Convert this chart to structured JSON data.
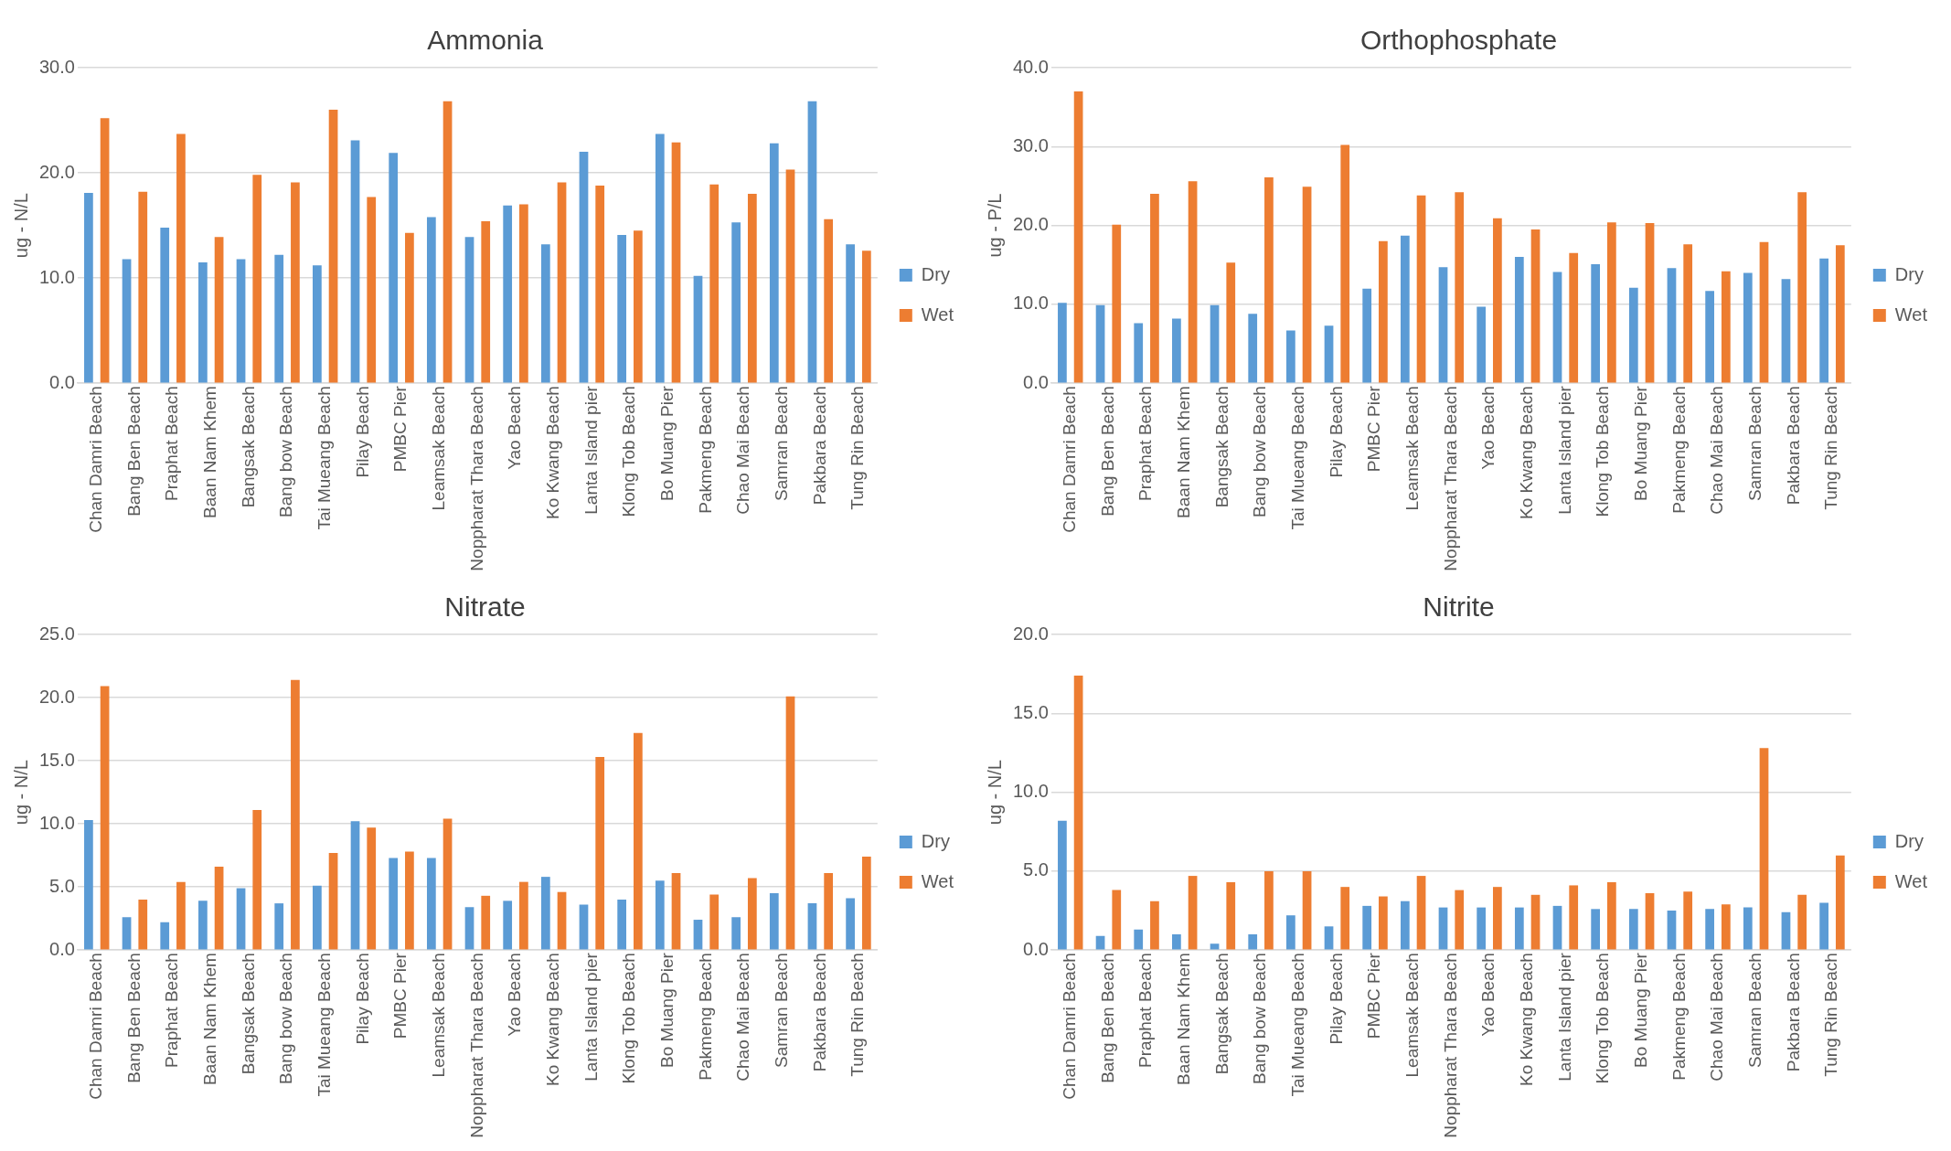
{
  "chart_data": [
    {
      "type": "bar",
      "title": "Ammonia",
      "ylabel": "ug - N/L",
      "categories": [
        "Chan Damri Beach",
        "Bang Ben Beach",
        "Praphat Beach",
        "Baan Nam Khem",
        "Bangsak Beach",
        "Bang bow Beach",
        "Tai Mueang Beach",
        "Pilay Beach",
        "PMBC Pier",
        "Leamsak Beach",
        "Noppharat Thara Beach",
        "Yao Beach",
        "Ko Kwang Beach",
        "Lanta Island pier",
        "Klong Tob Beach",
        "Bo Muang Pier",
        "Pakmeng Beach",
        "Chao Mai Beach",
        "Samran Beach",
        "Pakbara Beach",
        "Tung Rin Beach"
      ],
      "series": [
        {
          "name": "Dry",
          "color": "#5b9bd5",
          "values": [
            18.1,
            11.8,
            14.8,
            11.5,
            11.8,
            12.2,
            11.2,
            23.1,
            21.9,
            15.8,
            13.9,
            16.9,
            13.2,
            22.0,
            14.1,
            23.7,
            10.2,
            15.3,
            22.8,
            26.8,
            13.2
          ]
        },
        {
          "name": "Wet",
          "color": "#ed7d31",
          "values": [
            25.2,
            18.2,
            23.7,
            13.9,
            19.8,
            19.1,
            26.0,
            17.7,
            14.3,
            26.8,
            15.4,
            17.0,
            19.1,
            18.8,
            14.5,
            22.9,
            18.9,
            18.0,
            20.3,
            15.6,
            12.6
          ]
        }
      ],
      "ylim": [
        0,
        30
      ],
      "yticks": [
        {
          "value": 0,
          "label": "0.0"
        },
        {
          "value": 10,
          "label": "10.0"
        },
        {
          "value": 20,
          "label": "20.0"
        },
        {
          "value": 30,
          "label": "30.0"
        }
      ],
      "grid": "y",
      "legend": "right"
    },
    {
      "type": "bar",
      "title": "Orthophosphate",
      "ylabel": "ug - P/L",
      "categories": [
        "Chan Damri Beach",
        "Bang Ben Beach",
        "Praphat Beach",
        "Baan Nam Khem",
        "Bangsak Beach",
        "Bang bow Beach",
        "Tai Mueang Beach",
        "Pilay Beach",
        "PMBC Pier",
        "Leamsak Beach",
        "Noppharat Thara Beach",
        "Yao Beach",
        "Ko Kwang Beach",
        "Lanta Island pier",
        "Klong Tob Beach",
        "Bo Muang Pier",
        "Pakmeng Beach",
        "Chao Mai Beach",
        "Samran Beach",
        "Pakbara Beach",
        "Tung Rin Beach"
      ],
      "series": [
        {
          "name": "Dry",
          "color": "#5b9bd5",
          "values": [
            10.2,
            9.9,
            7.6,
            8.2,
            9.9,
            8.8,
            6.7,
            7.3,
            12.0,
            18.7,
            14.7,
            9.7,
            16.0,
            14.1,
            15.1,
            12.1,
            14.6,
            11.7,
            14.0,
            13.2,
            15.8
          ]
        },
        {
          "name": "Wet",
          "color": "#ed7d31",
          "values": [
            37.0,
            20.1,
            24.0,
            25.6,
            15.3,
            26.1,
            24.9,
            30.2,
            18.0,
            23.8,
            24.2,
            20.9,
            19.5,
            16.5,
            20.4,
            20.3,
            17.6,
            14.2,
            17.9,
            24.2,
            17.5
          ]
        }
      ],
      "ylim": [
        0,
        40
      ],
      "yticks": [
        {
          "value": 0,
          "label": "0.0"
        },
        {
          "value": 10,
          "label": "10.0"
        },
        {
          "value": 20,
          "label": "20.0"
        },
        {
          "value": 30,
          "label": "30.0"
        },
        {
          "value": 40,
          "label": "40.0"
        }
      ],
      "grid": "y",
      "legend": "right"
    },
    {
      "type": "bar",
      "title": "Nitrate",
      "ylabel": "ug - N/L",
      "categories": [
        "Chan Damri Beach",
        "Bang Ben Beach",
        "Praphat Beach",
        "Baan Nam Khem",
        "Bangsak Beach",
        "Bang bow Beach",
        "Tai Mueang Beach",
        "Pilay Beach",
        "PMBC Pier",
        "Leamsak Beach",
        "Noppharat Thara Beach",
        "Yao Beach",
        "Ko Kwang Beach",
        "Lanta Island pier",
        "Klong Tob Beach",
        "Bo Muang Pier",
        "Pakmeng Beach",
        "Chao Mai Beach",
        "Samran Beach",
        "Pakbara Beach",
        "Tung Rin Beach"
      ],
      "series": [
        {
          "name": "Dry",
          "color": "#5b9bd5",
          "values": [
            10.3,
            2.6,
            2.2,
            3.9,
            4.9,
            3.7,
            5.1,
            10.2,
            7.3,
            7.3,
            3.4,
            3.9,
            5.8,
            3.6,
            4.0,
            5.5,
            2.4,
            2.6,
            4.5,
            3.7,
            4.1
          ]
        },
        {
          "name": "Wet",
          "color": "#ed7d31",
          "values": [
            20.9,
            4.0,
            5.4,
            6.6,
            11.1,
            21.4,
            7.7,
            9.7,
            7.8,
            10.4,
            4.3,
            5.4,
            4.6,
            15.3,
            17.2,
            6.1,
            4.4,
            5.7,
            20.1,
            6.1,
            7.4
          ]
        }
      ],
      "ylim": [
        0,
        25
      ],
      "yticks": [
        {
          "value": 0,
          "label": "0.0"
        },
        {
          "value": 5,
          "label": "5.0"
        },
        {
          "value": 10,
          "label": "10.0"
        },
        {
          "value": 15,
          "label": "15.0"
        },
        {
          "value": 20,
          "label": "20.0"
        },
        {
          "value": 25,
          "label": "25.0"
        }
      ],
      "grid": "y",
      "legend": "right"
    },
    {
      "type": "bar",
      "title": "Nitrite",
      "ylabel": "ug - N/L",
      "categories": [
        "Chan Damri Beach",
        "Bang Ben Beach",
        "Praphat Beach",
        "Baan Nam Khem",
        "Bangsak Beach",
        "Bang bow Beach",
        "Tai Mueang Beach",
        "Pilay Beach",
        "PMBC Pier",
        "Leamsak Beach",
        "Noppharat Thara Beach",
        "Yao Beach",
        "Ko Kwang Beach",
        "Lanta Island pier",
        "Klong Tob Beach",
        "Bo Muang Pier",
        "Pakmeng Beach",
        "Chao Mai Beach",
        "Samran Beach",
        "Pakbara Beach",
        "Tung Rin Beach"
      ],
      "series": [
        {
          "name": "Dry",
          "color": "#5b9bd5",
          "values": [
            8.2,
            0.9,
            1.3,
            1.0,
            0.4,
            1.0,
            2.2,
            1.5,
            2.8,
            3.1,
            2.7,
            2.7,
            2.7,
            2.8,
            2.6,
            2.6,
            2.5,
            2.6,
            2.7,
            2.4,
            3.0
          ]
        },
        {
          "name": "Wet",
          "color": "#ed7d31",
          "values": [
            17.4,
            3.8,
            3.1,
            4.7,
            4.3,
            5.0,
            5.0,
            4.0,
            3.4,
            4.7,
            3.8,
            4.0,
            3.5,
            4.1,
            4.3,
            3.6,
            3.7,
            2.9,
            12.8,
            3.5,
            6.0
          ]
        }
      ],
      "ylim": [
        0,
        20
      ],
      "yticks": [
        {
          "value": 0,
          "label": "0.0"
        },
        {
          "value": 5,
          "label": "5.0"
        },
        {
          "value": 10,
          "label": "10.0"
        },
        {
          "value": 15,
          "label": "15.0"
        },
        {
          "value": 20,
          "label": "20.0"
        }
      ],
      "grid": "y",
      "legend": "right"
    }
  ]
}
